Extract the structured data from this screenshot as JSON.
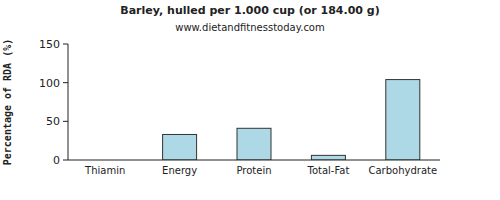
{
  "chart_data": {
    "type": "bar",
    "title": "Barley, hulled per 1.000 cup (or 184.00 g)",
    "subtitle": "www.dietandfitnesstoday.com",
    "y_label": "Percentage of RDA (%)",
    "categories": [
      "Thiamin",
      "Energy",
      "Protein",
      "Total-Fat",
      "Carbohydrate"
    ],
    "values": [
      0,
      33,
      41,
      6,
      104
    ],
    "color": "#add8e6",
    "ylim": [
      0,
      150
    ],
    "yticks": [
      0,
      50,
      100,
      150
    ],
    "grid": false
  }
}
